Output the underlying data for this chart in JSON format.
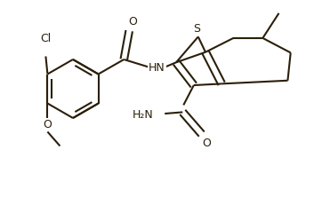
{
  "bg_color": "#ffffff",
  "line_color": "#2a1f0a",
  "line_width": 1.5,
  "font_size": 9,
  "fig_width": 3.62,
  "fig_height": 2.22,
  "xlim": [
    0,
    3.62
  ],
  "ylim": [
    0,
    2.22
  ]
}
